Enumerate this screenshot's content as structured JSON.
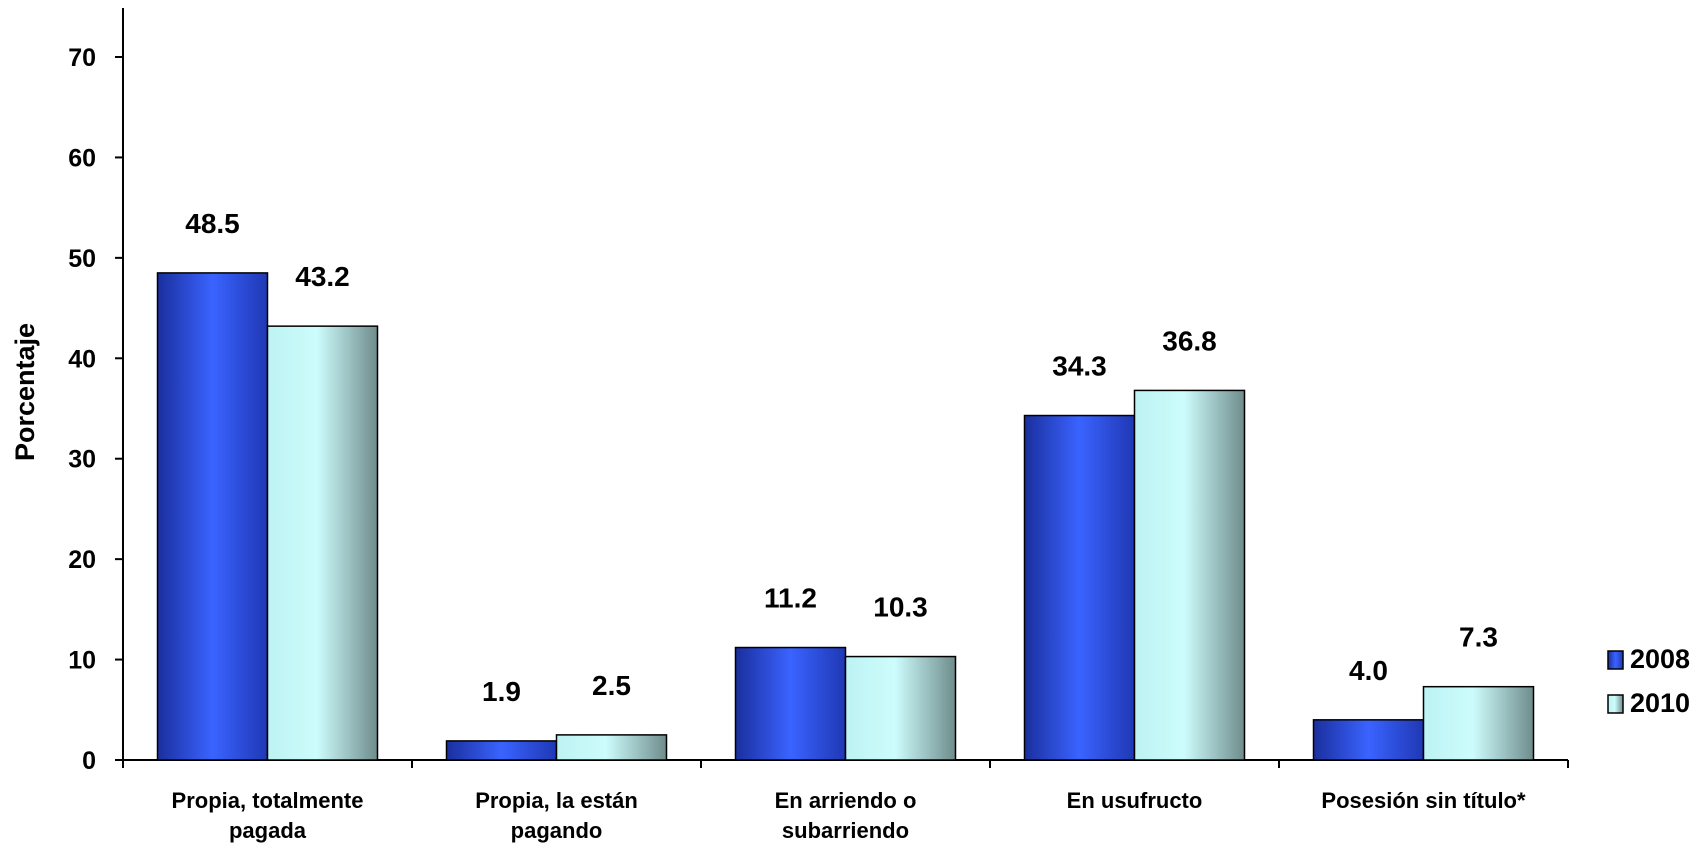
{
  "chart_data": {
    "type": "bar",
    "title": "",
    "xlabel": "",
    "ylabel": "Porcentaje",
    "ylim": [
      0,
      70
    ],
    "yticks": [
      0,
      10,
      20,
      30,
      40,
      50,
      60,
      70
    ],
    "grid": false,
    "legend_position": "right",
    "categories": [
      [
        "Propia, totalmente",
        "pagada"
      ],
      [
        "Propia, la están",
        "pagando"
      ],
      [
        "En arriendo  o",
        "subarriendo"
      ],
      [
        "En usufructo"
      ],
      [
        "Posesión sin título*"
      ]
    ],
    "series": [
      {
        "name": "2008",
        "values": [
          48.5,
          1.9,
          11.2,
          34.3,
          4.0
        ],
        "labels": [
          "48.5",
          "1.9",
          "11.2",
          "34.3",
          "4.0"
        ],
        "color": "#2f55e6"
      },
      {
        "name": "2010",
        "values": [
          43.2,
          2.5,
          10.3,
          36.8,
          7.3
        ],
        "labels": [
          "43.2",
          "2.5",
          "10.3",
          "36.8",
          "7.3"
        ],
        "color": "#c2f7f7"
      }
    ]
  }
}
